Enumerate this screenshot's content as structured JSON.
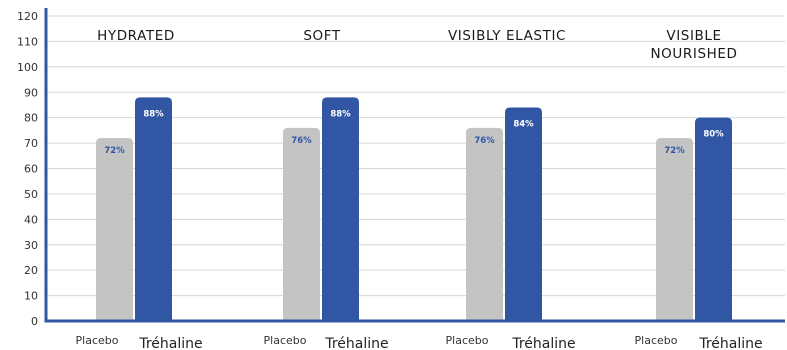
{
  "colors": {
    "placebo": "#c4c4c4",
    "trehaline": "#3157a4",
    "axis": "#3157a4",
    "grid": "#d6d6d6",
    "placebo_label": "#3157a4",
    "trehaline_label": "#ffffff"
  },
  "chart_data": {
    "type": "bar",
    "categories": [
      {
        "title_lines": [
          "HYDRATED"
        ],
        "placebo_label": "Placebo",
        "trehaline_label": "Tréhaline"
      },
      {
        "title_lines": [
          "SOFT"
        ],
        "placebo_label": "Placebo",
        "trehaline_label": "Tréhaline"
      },
      {
        "title_lines": [
          "VISIBLY ELASTIC"
        ],
        "placebo_label": "Placebo",
        "trehaline_label": "Tréhaline"
      },
      {
        "title_lines": [
          "VISIBLE",
          "NOURISHED"
        ],
        "placebo_label": "Placebo",
        "trehaline_label": "Tréhaline"
      }
    ],
    "series": [
      {
        "name": "Placebo",
        "values": [
          72,
          76,
          76,
          72
        ],
        "labels": [
          "72%",
          "76%",
          "76%",
          "72%"
        ]
      },
      {
        "name": "Tréhaline",
        "values": [
          88,
          88,
          84,
          80
        ],
        "labels": [
          "88%",
          "88%",
          "84%",
          "80%"
        ]
      }
    ],
    "ylim": [
      0,
      120
    ],
    "yticks": [
      0,
      10,
      20,
      30,
      40,
      50,
      60,
      70,
      80,
      90,
      100,
      110,
      120
    ],
    "grid": true,
    "legend": "none"
  }
}
